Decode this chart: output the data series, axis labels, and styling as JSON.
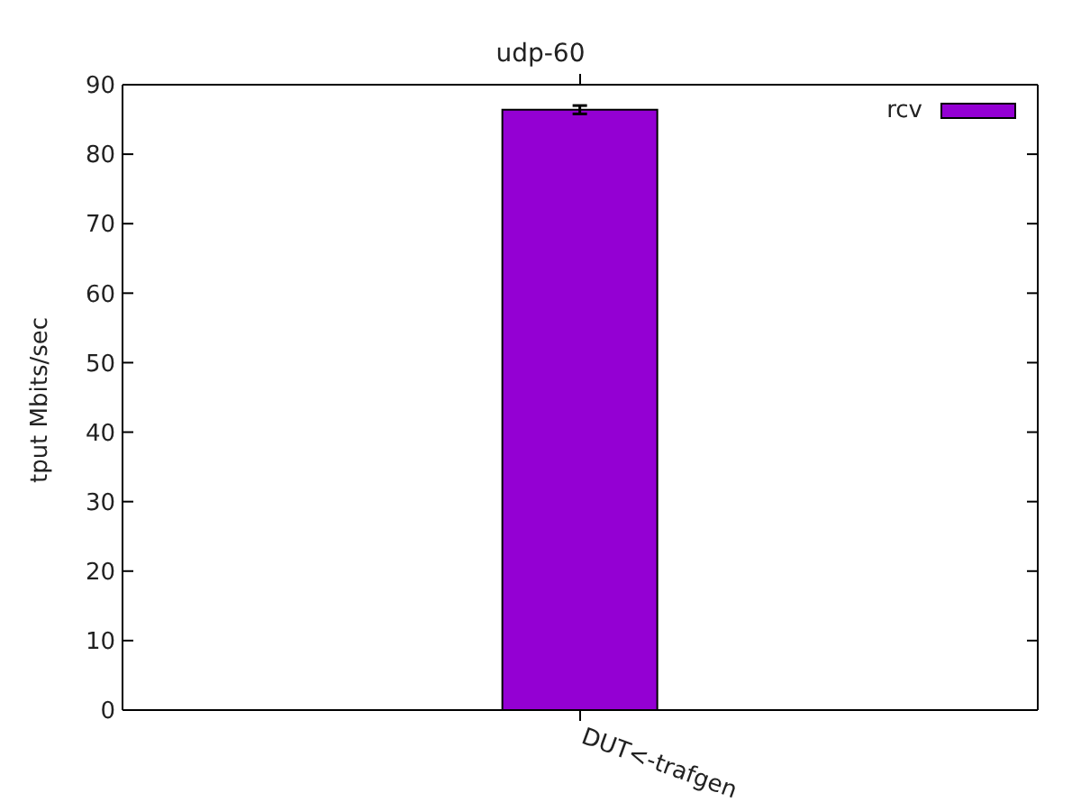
{
  "chart_data": {
    "type": "bar",
    "title": "udp-60",
    "ylabel": "tput Mbits/sec",
    "categories": [
      "DUT<-trafgen"
    ],
    "series": [
      {
        "name": "rcv",
        "color": "#9400d3",
        "values": [
          86.4
        ],
        "errors": [
          0.6
        ]
      }
    ],
    "ylim": [
      0,
      90
    ],
    "yticks": [
      0,
      10,
      20,
      30,
      40,
      50,
      60,
      70,
      80,
      90
    ],
    "legend": "top right"
  }
}
